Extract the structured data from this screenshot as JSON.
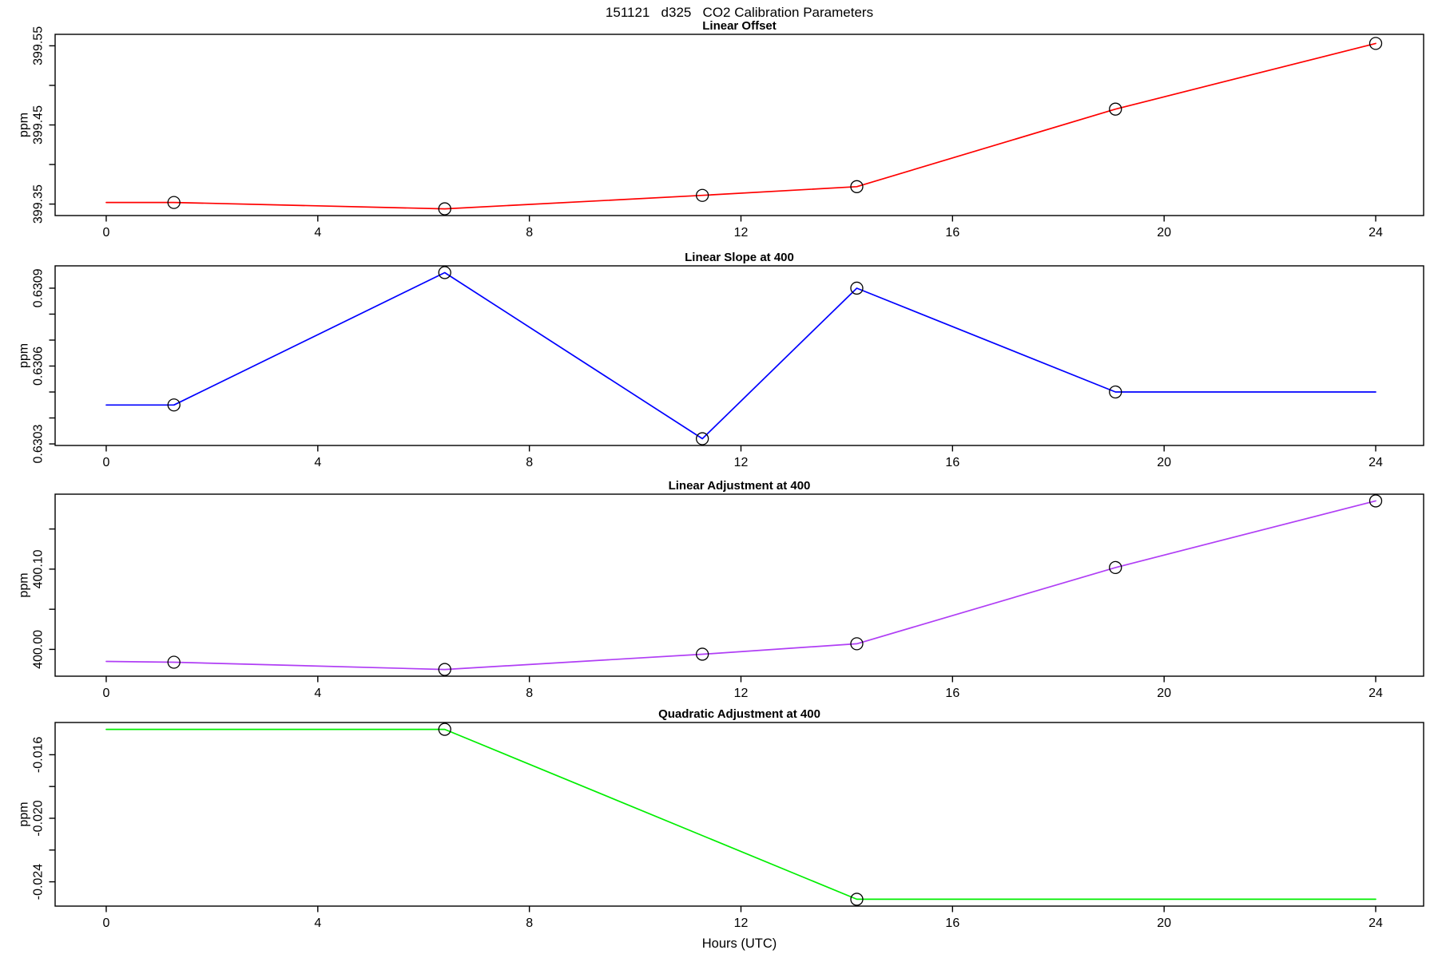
{
  "figure": {
    "title": "151121   d325   CO2 Calibration Parameters",
    "xlabel": "Hours (UTC)",
    "background": "#FFFFFF",
    "axis_color": "#000000"
  },
  "x_axis": {
    "lim": [
      -0.966,
      24.906
    ],
    "tick_values": [
      0,
      4,
      8,
      12,
      16,
      20,
      24
    ],
    "tick_labels": [
      "0",
      "4",
      "8",
      "12",
      "16",
      "20",
      "24"
    ]
  },
  "chart_data": [
    {
      "type": "line",
      "title": "Linear Offset",
      "ylabel": "ppm",
      "color": "#FF0000",
      "marker": "open-circle",
      "grid": false,
      "ylim": [
        399.3355,
        399.5645
      ],
      "yticks": [
        {
          "v": 399.35,
          "label": "399.35"
        },
        {
          "v": 399.4,
          "label": ""
        },
        {
          "v": 399.45,
          "label": "399.45"
        },
        {
          "v": 399.5,
          "label": ""
        },
        {
          "v": 399.55,
          "label": "399.55"
        }
      ],
      "x": [
        0,
        1.28,
        6.4,
        11.27,
        14.19,
        19.08,
        24
      ],
      "y": [
        399.352,
        399.352,
        399.344,
        399.361,
        399.372,
        399.47,
        399.553
      ],
      "markers": [
        false,
        true,
        true,
        true,
        true,
        true,
        true
      ]
    },
    {
      "type": "line",
      "title": "Linear Slope at 400",
      "ylabel": "ppm",
      "color": "#0000FF",
      "marker": "open-circle",
      "grid": false,
      "ylim": [
        0.630294,
        0.630986
      ],
      "yticks": [
        {
          "v": 0.6303,
          "label": "0.6303"
        },
        {
          "v": 0.6304,
          "label": ""
        },
        {
          "v": 0.6305,
          "label": ""
        },
        {
          "v": 0.6306,
          "label": "0.6306"
        },
        {
          "v": 0.6307,
          "label": ""
        },
        {
          "v": 0.6308,
          "label": ""
        },
        {
          "v": 0.6309,
          "label": "0.6309"
        }
      ],
      "x": [
        0,
        1.28,
        6.4,
        11.27,
        14.19,
        19.08,
        24
      ],
      "y": [
        0.63045,
        0.63045,
        0.63096,
        0.63032,
        0.6309,
        0.6305,
        0.6305
      ],
      "markers": [
        false,
        true,
        true,
        true,
        true,
        true,
        false
      ]
    },
    {
      "type": "line",
      "title": "Linear Adjustment at 400",
      "ylabel": "ppm",
      "color": "#B03EF5",
      "marker": "open-circle",
      "grid": false,
      "ylim": [
        399.9666,
        400.1934
      ],
      "yticks": [
        {
          "v": 400.0,
          "label": "400.00"
        },
        {
          "v": 400.05,
          "label": ""
        },
        {
          "v": 400.1,
          "label": "400.10"
        },
        {
          "v": 400.15,
          "label": ""
        }
      ],
      "x": [
        0,
        1.28,
        6.4,
        11.27,
        14.19,
        19.08,
        24
      ],
      "y": [
        399.985,
        399.984,
        399.975,
        399.994,
        400.007,
        400.102,
        400.185
      ],
      "markers": [
        false,
        true,
        true,
        true,
        true,
        true,
        true
      ]
    },
    {
      "type": "line",
      "title": "Quadratic Adjustment at 400",
      "ylabel": "ppm",
      "color": "#00EE00",
      "marker": "open-circle",
      "grid": false,
      "ylim": [
        -0.02553,
        -0.01397
      ],
      "yticks": [
        {
          "v": -0.024,
          "label": "-0.024"
        },
        {
          "v": -0.022,
          "label": ""
        },
        {
          "v": -0.02,
          "label": "-0.020"
        },
        {
          "v": -0.018,
          "label": ""
        },
        {
          "v": -0.016,
          "label": "-0.016"
        }
      ],
      "x": [
        0,
        6.4,
        14.19,
        24
      ],
      "y": [
        -0.0144,
        -0.0144,
        -0.0251,
        -0.0251
      ],
      "markers": [
        false,
        true,
        true,
        false
      ]
    }
  ]
}
